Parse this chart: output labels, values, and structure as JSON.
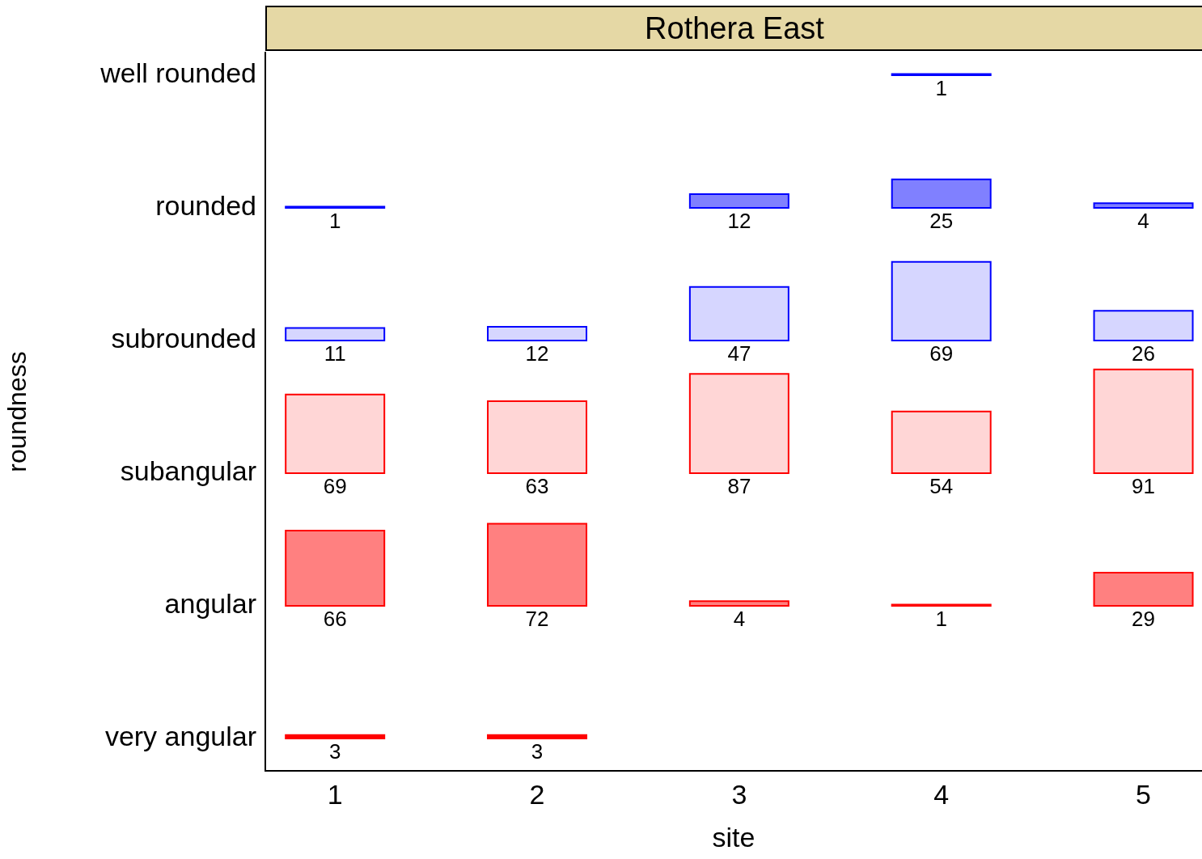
{
  "chart_data": {
    "type": "heatmap",
    "title": "Rothera East",
    "xlabel": "site",
    "ylabel": "roundness",
    "categories": [
      "1",
      "2",
      "3",
      "4",
      "5"
    ],
    "y_categories": [
      "well rounded",
      "rounded",
      "subrounded",
      "subangular",
      "angular",
      "very angular"
    ],
    "cells": [
      [
        null,
        null,
        null,
        1,
        null
      ],
      [
        1,
        null,
        12,
        25,
        4
      ],
      [
        11,
        12,
        47,
        69,
        26
      ],
      [
        69,
        63,
        87,
        54,
        91
      ],
      [
        66,
        72,
        4,
        1,
        29
      ],
      [
        3,
        3,
        null,
        null,
        null
      ]
    ],
    "colors": [
      "#0000ff",
      "#8080ff",
      "#d6d6ff",
      "#ffd6d6",
      "#ff8080",
      "#ff0000"
    ],
    "data_labels": true,
    "grid": false,
    "legend": false
  }
}
